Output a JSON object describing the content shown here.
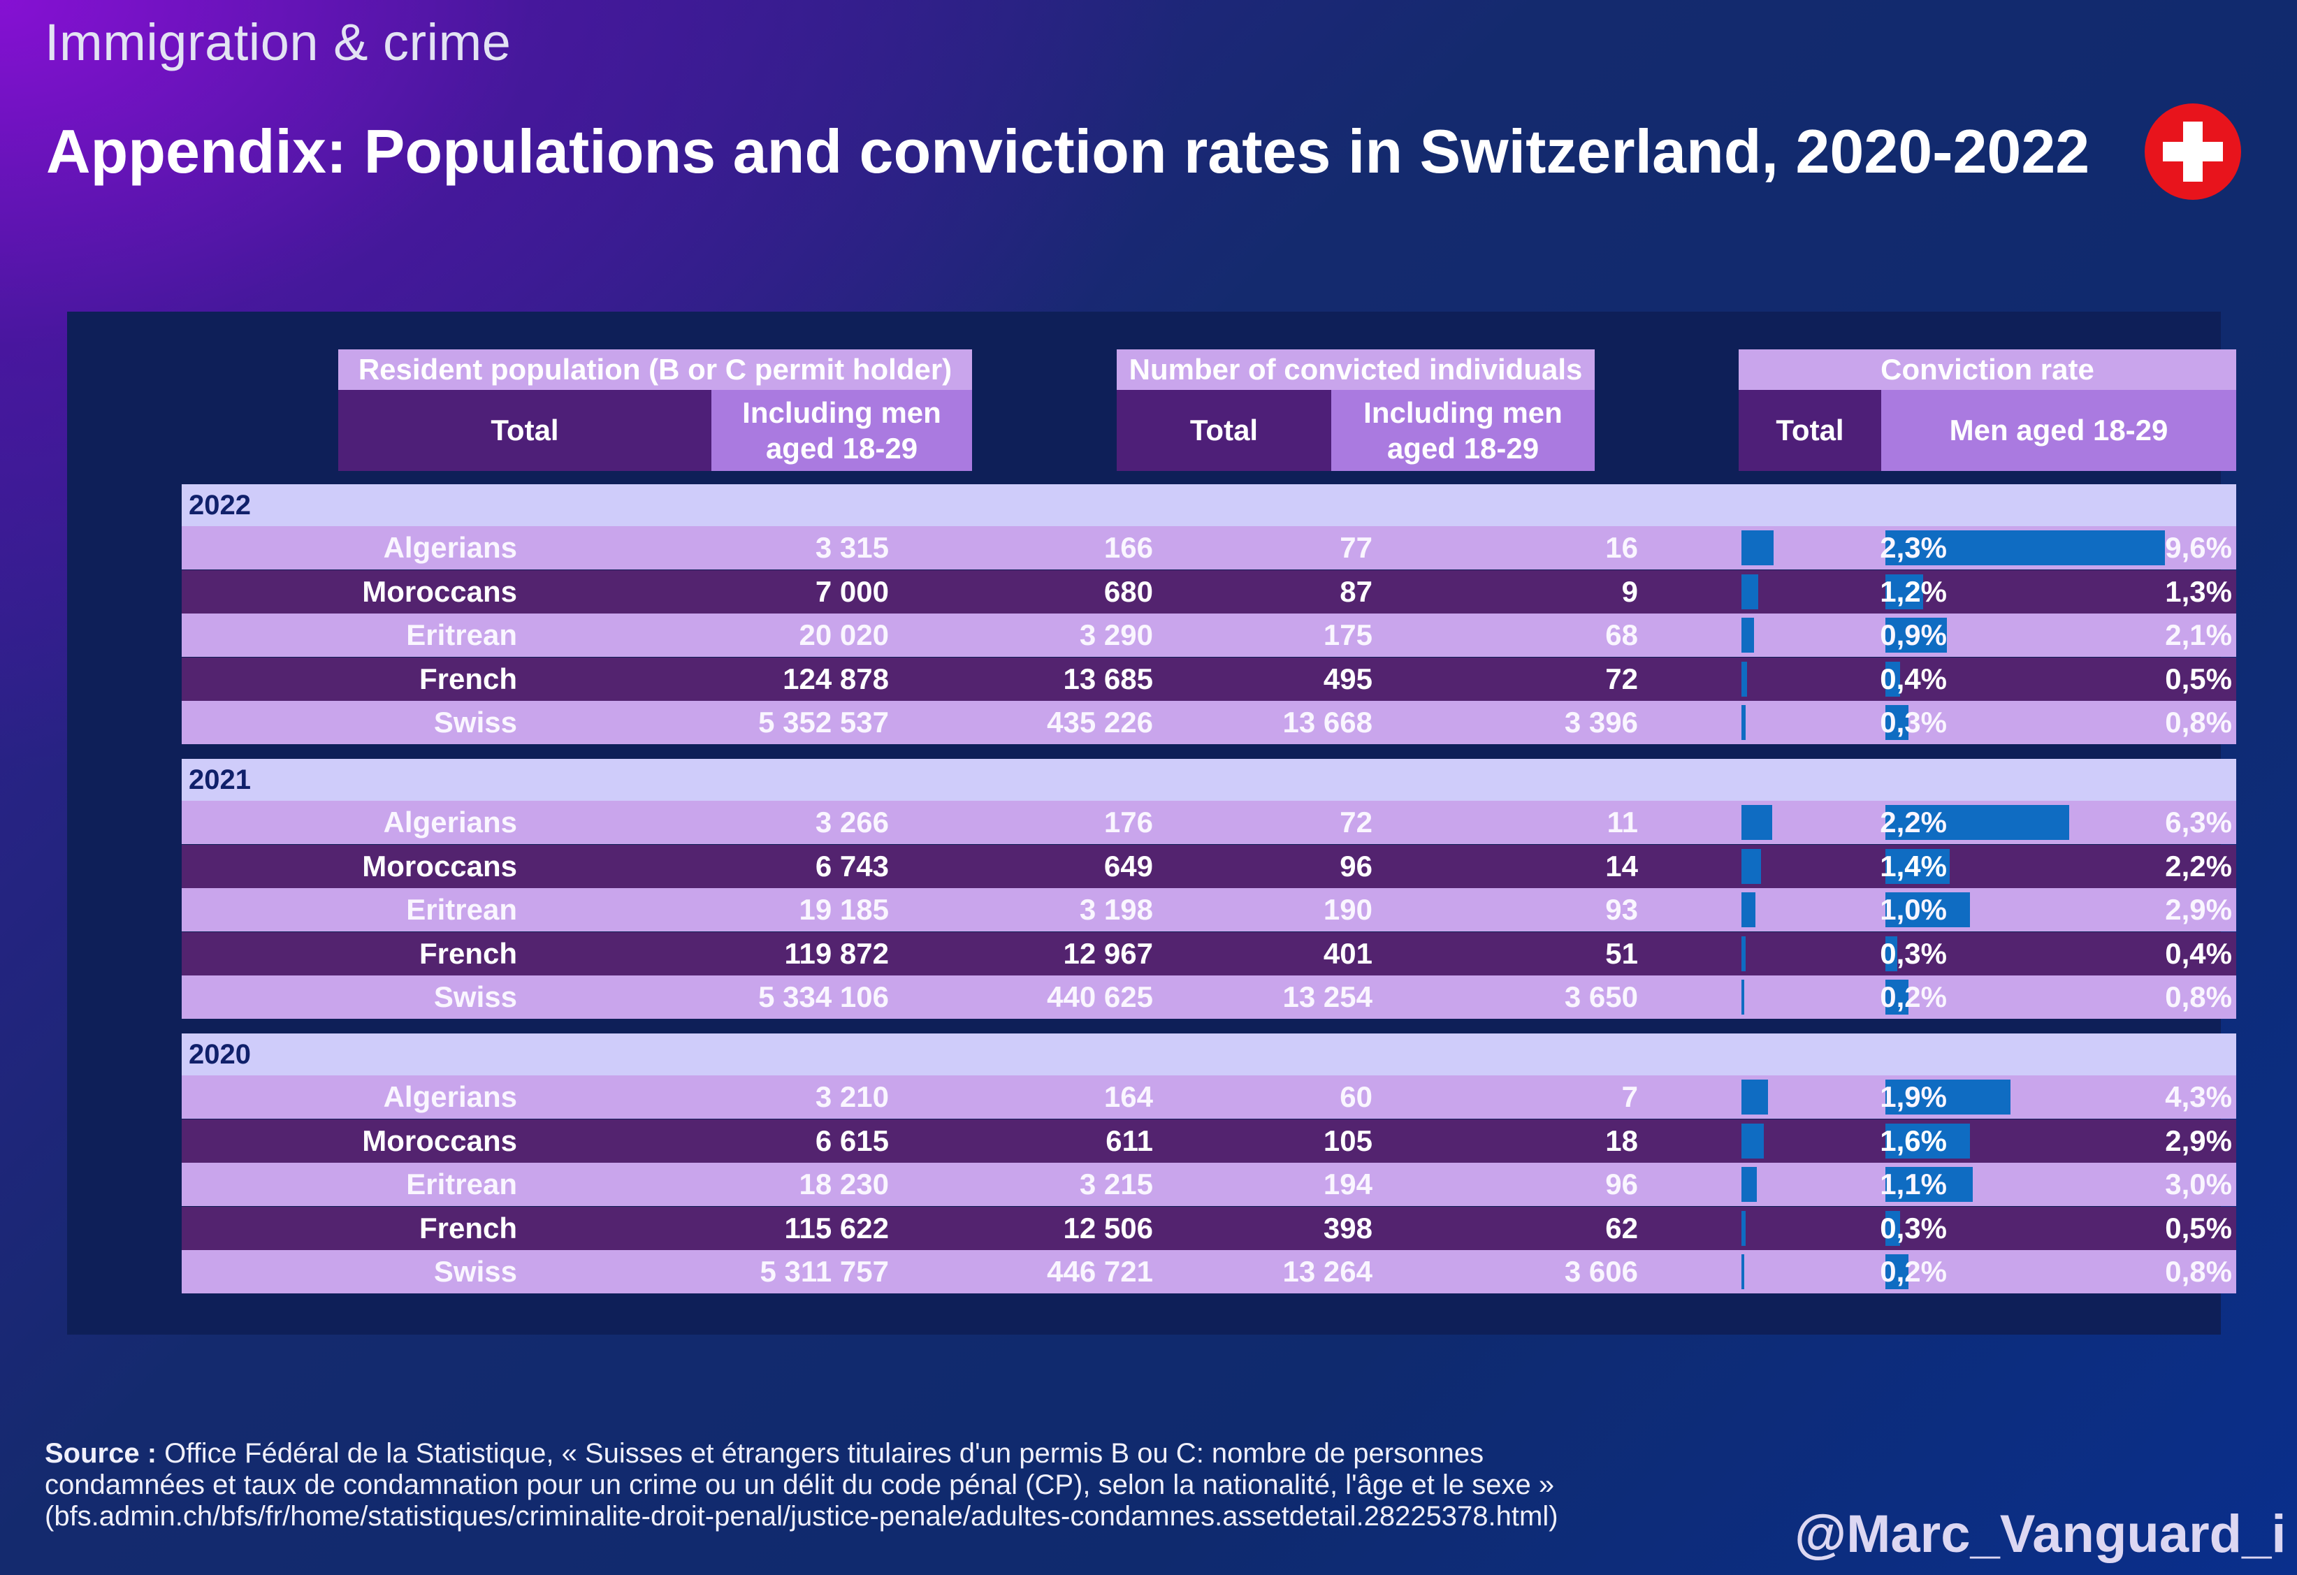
{
  "supertitle": "Immigration & crime",
  "title": "Appendix: Populations and conviction rates in Switzerland, 2020-2022",
  "flag_icon": "swiss-flag-icon",
  "colors": {
    "bar": "#0f6cc2",
    "row_light": "#c9a5ec",
    "row_dark": "#53236f",
    "year_bar": "#cfccfa",
    "panel": "#0e1f58"
  },
  "headers": {
    "resident_population": "Resident population (B or C permit holder)",
    "resident_total": "Total",
    "resident_men": "Including men aged 18-29",
    "convicted": "Number of convicted individuals",
    "convicted_total": "Total",
    "convicted_men": "Including men aged 18-29",
    "rate": "Conviction rate",
    "rate_total": "Total",
    "rate_men": "Men aged 18-29"
  },
  "chart_data": {
    "type": "table",
    "columns": [
      "Resident population — Total",
      "Resident population — Including men aged 18-29",
      "Number of convicted individuals — Total",
      "Number of convicted individuals — Including men aged 18-29",
      "Conviction rate — Total",
      "Conviction rate — Men aged 18-29"
    ],
    "years": [
      {
        "year": "2022",
        "rows": [
          {
            "nationality": "Algerians",
            "pop_total": "3 315",
            "pop_men": "166",
            "conv_total": "77",
            "conv_men": "16",
            "rate_total": "2,3%",
            "rate_men": "9,6%",
            "rate_total_value": 2.3,
            "rate_men_value": 9.6
          },
          {
            "nationality": "Moroccans",
            "pop_total": "7 000",
            "pop_men": "680",
            "conv_total": "87",
            "conv_men": "9",
            "rate_total": "1,2%",
            "rate_men": "1,3%",
            "rate_total_value": 1.2,
            "rate_men_value": 1.3
          },
          {
            "nationality": "Eritrean",
            "pop_total": "20 020",
            "pop_men": "3 290",
            "conv_total": "175",
            "conv_men": "68",
            "rate_total": "0,9%",
            "rate_men": "2,1%",
            "rate_total_value": 0.9,
            "rate_men_value": 2.1
          },
          {
            "nationality": "French",
            "pop_total": "124 878",
            "pop_men": "13 685",
            "conv_total": "495",
            "conv_men": "72",
            "rate_total": "0,4%",
            "rate_men": "0,5%",
            "rate_total_value": 0.4,
            "rate_men_value": 0.5
          },
          {
            "nationality": "Swiss",
            "pop_total": "5 352 537",
            "pop_men": "435 226",
            "conv_total": "13 668",
            "conv_men": "3 396",
            "rate_total": "0,3%",
            "rate_men": "0,8%",
            "rate_total_value": 0.3,
            "rate_men_value": 0.8
          }
        ]
      },
      {
        "year": "2021",
        "rows": [
          {
            "nationality": "Algerians",
            "pop_total": "3 266",
            "pop_men": "176",
            "conv_total": "72",
            "conv_men": "11",
            "rate_total": "2,2%",
            "rate_men": "6,3%",
            "rate_total_value": 2.2,
            "rate_men_value": 6.3
          },
          {
            "nationality": "Moroccans",
            "pop_total": "6 743",
            "pop_men": "649",
            "conv_total": "96",
            "conv_men": "14",
            "rate_total": "1,4%",
            "rate_men": "2,2%",
            "rate_total_value": 1.4,
            "rate_men_value": 2.2
          },
          {
            "nationality": "Eritrean",
            "pop_total": "19 185",
            "pop_men": "3 198",
            "conv_total": "190",
            "conv_men": "93",
            "rate_total": "1,0%",
            "rate_men": "2,9%",
            "rate_total_value": 1.0,
            "rate_men_value": 2.9
          },
          {
            "nationality": "French",
            "pop_total": "119 872",
            "pop_men": "12 967",
            "conv_total": "401",
            "conv_men": "51",
            "rate_total": "0,3%",
            "rate_men": "0,4%",
            "rate_total_value": 0.3,
            "rate_men_value": 0.4
          },
          {
            "nationality": "Swiss",
            "pop_total": "5 334 106",
            "pop_men": "440 625",
            "conv_total": "13 254",
            "conv_men": "3 650",
            "rate_total": "0,2%",
            "rate_men": "0,8%",
            "rate_total_value": 0.2,
            "rate_men_value": 0.8
          }
        ]
      },
      {
        "year": "2020",
        "rows": [
          {
            "nationality": "Algerians",
            "pop_total": "3 210",
            "pop_men": "164",
            "conv_total": "60",
            "conv_men": "7",
            "rate_total": "1,9%",
            "rate_men": "4,3%",
            "rate_total_value": 1.9,
            "rate_men_value": 4.3
          },
          {
            "nationality": "Moroccans",
            "pop_total": "6 615",
            "pop_men": "611",
            "conv_total": "105",
            "conv_men": "18",
            "rate_total": "1,6%",
            "rate_men": "2,9%",
            "rate_total_value": 1.6,
            "rate_men_value": 2.9
          },
          {
            "nationality": "Eritrean",
            "pop_total": "18 230",
            "pop_men": "3 215",
            "conv_total": "194",
            "conv_men": "96",
            "rate_total": "1,1%",
            "rate_men": "3,0%",
            "rate_total_value": 1.1,
            "rate_men_value": 3.0
          },
          {
            "nationality": "French",
            "pop_total": "115 622",
            "pop_men": "12 506",
            "conv_total": "398",
            "conv_men": "62",
            "rate_total": "0,3%",
            "rate_men": "0,5%",
            "rate_total_value": 0.3,
            "rate_men_value": 0.5
          },
          {
            "nationality": "Swiss",
            "pop_total": "5 311 757",
            "pop_men": "446 721",
            "conv_total": "13 264",
            "conv_men": "3 606",
            "rate_total": "0,2%",
            "rate_men": "0,8%",
            "rate_total_value": 0.2,
            "rate_men_value": 0.8
          }
        ]
      }
    ]
  },
  "source": {
    "label": "Source :",
    "line1": "Office Fédéral de la Statistique, « Suisses et étrangers titulaires d'un permis B ou C: nombre de personnes",
    "line2": "condamnées et taux de condamnation pour un crime ou un délit du code pénal (CP), selon la nationalité, l'âge et le sexe »",
    "line3": "(bfs.admin.ch/bfs/fr/home/statistiques/criminalite-droit-penal/justice-penale/adultes-condamnes.assetdetail.28225378.html)"
  },
  "handle": "@Marc_Vanguard_i"
}
